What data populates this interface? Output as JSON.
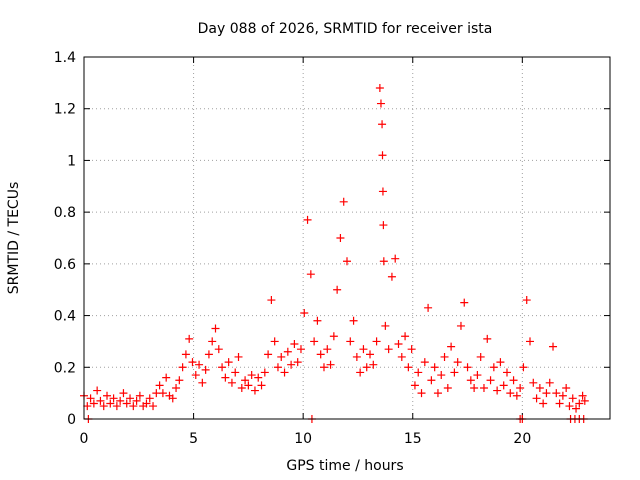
{
  "chart_data": {
    "type": "scatter",
    "title": "Day 088 of 2026, SRMTID for receiver ista",
    "xlabel": "GPS time / hours",
    "ylabel": "SRMTID / TECUs",
    "xlim": [
      0,
      24
    ],
    "ylim": [
      0,
      1.4
    ],
    "x_ticks": [
      0,
      5,
      10,
      15,
      20
    ],
    "x_tick_labels": [
      "0",
      "5",
      "10",
      "15",
      "20"
    ],
    "y_ticks": [
      0,
      0.2,
      0.4,
      0.6,
      0.8,
      1.0,
      1.2,
      1.4
    ],
    "y_tick_labels": [
      "0",
      "0.2",
      "0.4",
      "0.6",
      "0.8",
      "1",
      "1.2",
      "1.4"
    ],
    "grid": true,
    "legend": null,
    "marker": "+",
    "color": "#ff0000",
    "series": [
      {
        "name": "SRMTID",
        "points": [
          [
            0.0,
            0.09
          ],
          [
            0.15,
            0.05
          ],
          [
            0.3,
            0.08
          ],
          [
            0.45,
            0.06
          ],
          [
            0.6,
            0.11
          ],
          [
            0.75,
            0.07
          ],
          [
            0.9,
            0.05
          ],
          [
            1.05,
            0.09
          ],
          [
            1.2,
            0.06
          ],
          [
            1.35,
            0.08
          ],
          [
            1.5,
            0.05
          ],
          [
            1.65,
            0.07
          ],
          [
            1.8,
            0.1
          ],
          [
            1.95,
            0.06
          ],
          [
            2.1,
            0.08
          ],
          [
            2.25,
            0.05
          ],
          [
            2.4,
            0.07
          ],
          [
            2.55,
            0.09
          ],
          [
            2.7,
            0.05
          ],
          [
            2.85,
            0.06
          ],
          [
            3.0,
            0.08
          ],
          [
            3.15,
            0.05
          ],
          [
            3.3,
            0.1
          ],
          [
            3.45,
            0.13
          ],
          [
            3.6,
            0.1
          ],
          [
            3.75,
            0.16
          ],
          [
            3.9,
            0.09
          ],
          [
            4.05,
            0.08
          ],
          [
            4.2,
            0.12
          ],
          [
            4.35,
            0.15
          ],
          [
            4.5,
            0.2
          ],
          [
            4.65,
            0.25
          ],
          [
            4.8,
            0.31
          ],
          [
            4.95,
            0.22
          ],
          [
            5.1,
            0.17
          ],
          [
            5.25,
            0.21
          ],
          [
            5.4,
            0.14
          ],
          [
            5.55,
            0.19
          ],
          [
            5.7,
            0.25
          ],
          [
            5.85,
            0.3
          ],
          [
            6.0,
            0.35
          ],
          [
            6.15,
            0.27
          ],
          [
            6.3,
            0.2
          ],
          [
            6.45,
            0.16
          ],
          [
            6.6,
            0.22
          ],
          [
            6.75,
            0.14
          ],
          [
            6.9,
            0.18
          ],
          [
            7.05,
            0.24
          ],
          [
            7.2,
            0.12
          ],
          [
            7.35,
            0.15
          ],
          [
            7.5,
            0.13
          ],
          [
            7.65,
            0.17
          ],
          [
            7.8,
            0.11
          ],
          [
            7.95,
            0.16
          ],
          [
            8.1,
            0.13
          ],
          [
            8.25,
            0.18
          ],
          [
            8.4,
            0.25
          ],
          [
            8.55,
            0.46
          ],
          [
            8.7,
            0.3
          ],
          [
            8.85,
            0.2
          ],
          [
            9.0,
            0.24
          ],
          [
            9.15,
            0.18
          ],
          [
            9.3,
            0.26
          ],
          [
            9.45,
            0.21
          ],
          [
            9.6,
            0.29
          ],
          [
            9.75,
            0.22
          ],
          [
            9.9,
            0.27
          ],
          [
            10.05,
            0.41
          ],
          [
            10.2,
            0.77
          ],
          [
            10.35,
            0.56
          ],
          [
            10.5,
            0.3
          ],
          [
            10.65,
            0.38
          ],
          [
            10.8,
            0.25
          ],
          [
            10.95,
            0.2
          ],
          [
            11.1,
            0.27
          ],
          [
            11.25,
            0.21
          ],
          [
            11.4,
            0.32
          ],
          [
            11.55,
            0.5
          ],
          [
            11.7,
            0.7
          ],
          [
            11.85,
            0.84
          ],
          [
            12.0,
            0.61
          ],
          [
            12.15,
            0.3
          ],
          [
            12.3,
            0.38
          ],
          [
            12.45,
            0.24
          ],
          [
            12.6,
            0.18
          ],
          [
            12.75,
            0.27
          ],
          [
            12.9,
            0.2
          ],
          [
            13.05,
            0.25
          ],
          [
            13.2,
            0.21
          ],
          [
            13.35,
            0.3
          ],
          [
            13.5,
            1.28
          ],
          [
            13.55,
            1.22
          ],
          [
            13.6,
            1.14
          ],
          [
            13.62,
            1.02
          ],
          [
            13.64,
            0.88
          ],
          [
            13.66,
            0.75
          ],
          [
            13.68,
            0.61
          ],
          [
            13.75,
            0.36
          ],
          [
            13.9,
            0.27
          ],
          [
            14.05,
            0.55
          ],
          [
            14.2,
            0.62
          ],
          [
            14.35,
            0.29
          ],
          [
            14.5,
            0.24
          ],
          [
            14.65,
            0.32
          ],
          [
            14.8,
            0.2
          ],
          [
            14.95,
            0.27
          ],
          [
            15.1,
            0.13
          ],
          [
            15.25,
            0.18
          ],
          [
            15.4,
            0.1
          ],
          [
            15.55,
            0.22
          ],
          [
            15.7,
            0.43
          ],
          [
            15.85,
            0.15
          ],
          [
            16.0,
            0.2
          ],
          [
            16.15,
            0.1
          ],
          [
            16.3,
            0.17
          ],
          [
            16.45,
            0.24
          ],
          [
            16.6,
            0.12
          ],
          [
            16.75,
            0.28
          ],
          [
            16.9,
            0.18
          ],
          [
            17.05,
            0.22
          ],
          [
            17.2,
            0.36
          ],
          [
            17.35,
            0.45
          ],
          [
            17.5,
            0.2
          ],
          [
            17.65,
            0.15
          ],
          [
            17.8,
            0.12
          ],
          [
            17.95,
            0.17
          ],
          [
            18.1,
            0.24
          ],
          [
            18.25,
            0.12
          ],
          [
            18.4,
            0.31
          ],
          [
            18.55,
            0.15
          ],
          [
            18.7,
            0.2
          ],
          [
            18.85,
            0.11
          ],
          [
            19.0,
            0.22
          ],
          [
            19.15,
            0.13
          ],
          [
            19.3,
            0.18
          ],
          [
            19.45,
            0.1
          ],
          [
            19.6,
            0.15
          ],
          [
            19.75,
            0.09
          ],
          [
            19.9,
            0.12
          ],
          [
            20.05,
            0.2
          ],
          [
            20.2,
            0.46
          ],
          [
            20.35,
            0.3
          ],
          [
            20.5,
            0.14
          ],
          [
            20.65,
            0.08
          ],
          [
            20.8,
            0.12
          ],
          [
            20.95,
            0.06
          ],
          [
            21.1,
            0.1
          ],
          [
            21.25,
            0.14
          ],
          [
            21.4,
            0.28
          ],
          [
            21.55,
            0.1
          ],
          [
            21.7,
            0.06
          ],
          [
            21.85,
            0.09
          ],
          [
            22.0,
            0.12
          ],
          [
            22.15,
            0.05
          ],
          [
            22.3,
            0.08
          ],
          [
            22.45,
            0.04
          ],
          [
            22.6,
            0.06
          ],
          [
            22.75,
            0.09
          ],
          [
            22.85,
            0.07
          ],
          [
            0.2,
            0.0
          ],
          [
            10.4,
            0.0
          ],
          [
            19.9,
            0.0
          ],
          [
            20.0,
            0.0
          ],
          [
            22.2,
            0.0
          ],
          [
            22.4,
            0.0
          ],
          [
            22.6,
            0.0
          ],
          [
            22.8,
            0.0
          ]
        ]
      }
    ]
  }
}
